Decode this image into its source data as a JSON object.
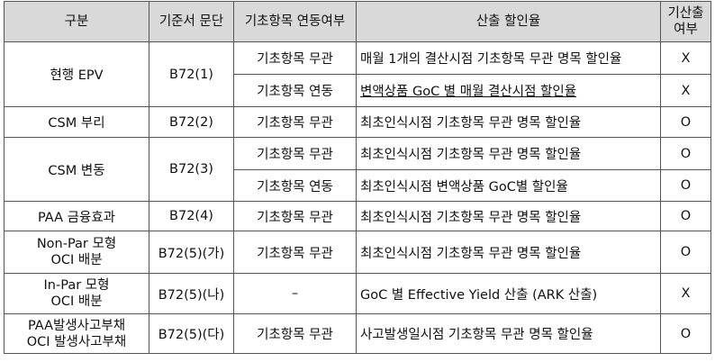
{
  "headers": {
    "col1": "구분",
    "col2": "기준서 문단",
    "col3": "기초항목 연동여부",
    "col4": "산출 할인율",
    "col5_line1": "기산출",
    "col5_line2": "여부"
  },
  "rows": {
    "r1": {
      "category": "현행 EPV",
      "paragraph": "B72(1)",
      "linkage_a": "기초항목 무관",
      "rate_a": "매월 1개의 결산시점 기초항목 무관 명목 할인율",
      "calc_a": "X",
      "linkage_b": "기초항목 연동",
      "rate_b": "변액상품 GoC 별 매월 결산시점 할인율",
      "calc_b": "X"
    },
    "r2": {
      "category": "CSM 부리",
      "paragraph": "B72(2)",
      "linkage": "기초항목 무관",
      "rate": "최초인식시점 기초항목 무관 명목 할인율",
      "calc": "O"
    },
    "r3": {
      "category": "CSM 변동",
      "paragraph": "B72(3)",
      "linkage_a": "기초항목 무관",
      "rate_a": "최초인식시점 기초항목 무관 명목 할인율",
      "calc_a": "O",
      "linkage_b": "기초항목 연동",
      "rate_b": "최초인식시점 변액상품 GoC별 할인율",
      "calc_b": "O"
    },
    "r4": {
      "category": "PAA 금융효과",
      "paragraph": "B72(4)",
      "linkage": "기초항목 무관",
      "rate": "최초인식시점 기초항목 무관 명목 할인율",
      "calc": "O"
    },
    "r5": {
      "category_line1": "Non-Par 모형",
      "category_line2": "OCI 배분",
      "paragraph": "B72(5)(가)",
      "linkage": "기초항목 무관",
      "rate": "최초인식시점 기초항목 무관 명목 할인율",
      "calc": "O"
    },
    "r6": {
      "category_line1": "In-Par 모형",
      "category_line2": "OCI 배분",
      "paragraph": "B72(5)(나)",
      "linkage": "–",
      "rate": "GoC 별 Effective Yield 산출 (ARK 산출)",
      "calc": "X"
    },
    "r7": {
      "category_line1": "PAA발생사고부채",
      "category_line2": "OCI 발생사고부채",
      "paragraph": "B72(5)(다)",
      "linkage": "기초항목 무관",
      "rate": "사고발생일시점 기초항목 무관 명목 할인율",
      "calc": "O"
    }
  }
}
